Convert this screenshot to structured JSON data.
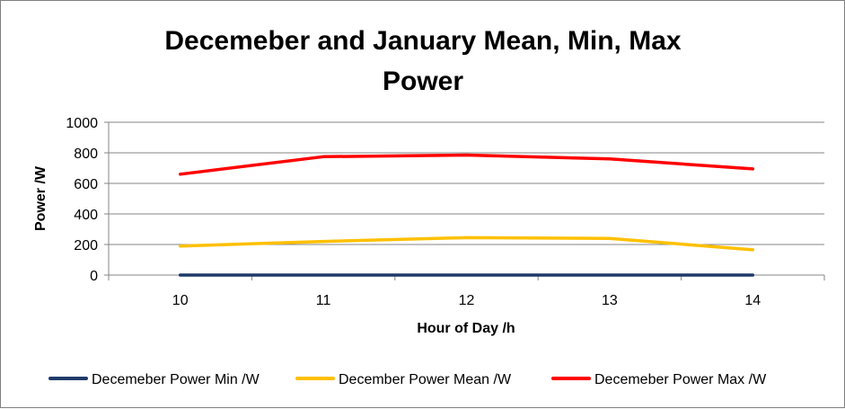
{
  "chart_data": {
    "type": "line",
    "title_lines": [
      "Decemeber and January Mean, Min, Max",
      "Power"
    ],
    "xlabel": "Hour of Day /h",
    "ylabel": "Power /W",
    "x": [
      10,
      11,
      12,
      13,
      14
    ],
    "x_tick_labels": [
      "10",
      "11",
      "12",
      "13",
      "14"
    ],
    "y_tick_labels": [
      "0",
      "200",
      "400",
      "600",
      "800",
      "1000"
    ],
    "ylim": [
      0,
      1000
    ],
    "grid": "horizontal",
    "legend_position": "bottom",
    "series": [
      {
        "name": "Decemeber Power Min /W",
        "color": "#1f3a68",
        "values": [
          0,
          0,
          0,
          0,
          0
        ]
      },
      {
        "name": "December Power Mean /W",
        "color": "#ffc000",
        "values": [
          190,
          220,
          245,
          240,
          165
        ]
      },
      {
        "name": "Decemeber Power Max /W",
        "color": "#ff0000",
        "values": [
          660,
          775,
          785,
          760,
          695
        ]
      }
    ]
  }
}
